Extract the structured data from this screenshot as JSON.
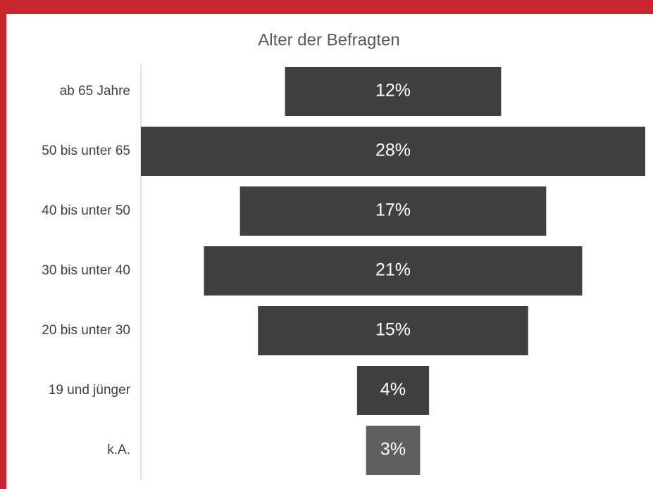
{
  "chart_data": {
    "type": "funnel",
    "title": "Alter der Befragten",
    "categories": [
      "ab 65 Jahre",
      "50 bis unter 65",
      "40 bis unter 50",
      "30 bis unter 40",
      "20 bis unter 30",
      "19 und jünger",
      "k.A."
    ],
    "values": [
      12,
      28,
      17,
      21,
      15,
      4,
      3
    ],
    "value_labels": [
      "12%",
      "28%",
      "17%",
      "21%",
      "15%",
      "4%",
      "3%"
    ],
    "colors": [
      "#404040",
      "#404040",
      "#404040",
      "#404040",
      "#404040",
      "#404040",
      "#5f5f5f"
    ]
  }
}
